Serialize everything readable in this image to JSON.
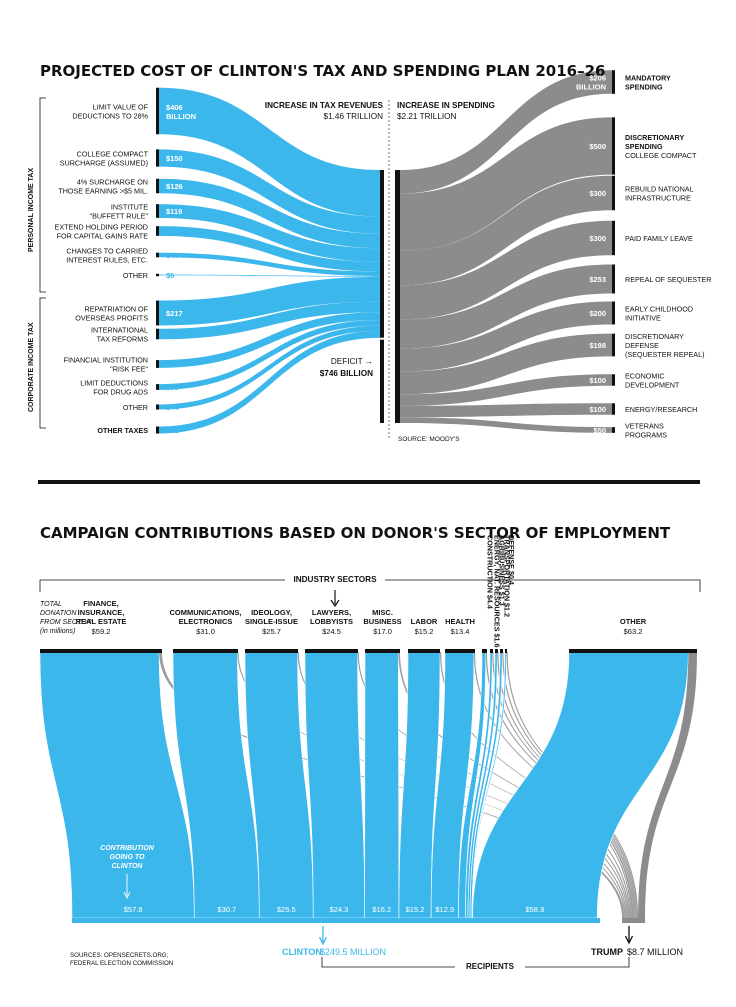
{
  "colors": {
    "blue": "#3cb7ec",
    "gray": "#8c8c8e",
    "dark": "#111111",
    "white": "#ffffff"
  },
  "top": {
    "title": "PROJECTED COST OF CLINTON'S TAX AND SPENDING PLAN 2016–26",
    "header_revenue_title": "INCREASE IN TAX REVENUES",
    "header_revenue_value": "$1.46 TRILLION",
    "header_spending_title": "INCREASE IN SPENDING",
    "header_spending_value": "$2.21 TRILLION",
    "bracket_personal": "PERSONAL INCOME TAX",
    "bracket_corporate": "CORPORATE INCOME TAX",
    "deficit_label": "DEFICIT →",
    "deficit_value": "$746 BILLION",
    "source": "SOURCE: MOODY'S"
  },
  "bottom": {
    "title": "CAMPAIGN CONTRIBUTIONS BASED ON DONOR'S SECTOR OF EMPLOYMENT",
    "industry_label": "INDUSTRY SECTORS",
    "total_note": [
      "TOTAL",
      "DONATION",
      "FROM SECTOR",
      "(in millions)"
    ],
    "clinton_note": [
      "CONTRIBUTION",
      "GOING TO",
      "CLINTON"
    ],
    "clinton_label": "CLINTON",
    "clinton_value": "$249.5 MILLION",
    "trump_label": "TRUMP",
    "trump_value": "$8.7 MILLION",
    "recipients_label": "RECIPIENTS",
    "sources": [
      "SOURCES: OPENSECRETS.ORG;",
      "FEDERAL ELECTION COMMISSION"
    ]
  },
  "chart_data": [
    {
      "type": "sankey",
      "title": "PROJECTED COST OF CLINTON'S TAX AND SPENDING PLAN 2016–26",
      "units": "billions",
      "sources": [
        {
          "group": "PERSONAL INCOME TAX",
          "label": [
            "LIMIT VALUE OF",
            "DEDUCTIONS TO 28%"
          ],
          "value": 406,
          "value_label": [
            "$406",
            "BILLION"
          ]
        },
        {
          "group": "PERSONAL INCOME TAX",
          "label": [
            "COLLEGE COMPACT",
            "SURCHARGE (ASSUMED)"
          ],
          "value": 150,
          "value_label": [
            "$150"
          ]
        },
        {
          "group": "PERSONAL INCOME TAX",
          "label": [
            "4% SURCHARGE ON",
            "THOSE EARNING >$5 MIL."
          ],
          "value": 126,
          "value_label": [
            "$126"
          ]
        },
        {
          "group": "PERSONAL INCOME TAX",
          "label": [
            "INSTITUTE",
            "\"BUFFETT RULE\""
          ],
          "value": 119,
          "value_label": [
            "$119"
          ]
        },
        {
          "group": "PERSONAL INCOME TAX",
          "label": [
            "EXTEND HOLDING PERIOD",
            "FOR CAPITAL GAINS RATE"
          ],
          "value": 84,
          "value_label": [
            "$84"
          ]
        },
        {
          "group": "PERSONAL INCOME TAX",
          "label": [
            "CHANGES TO CARRIED",
            "INTEREST RULES, ETC."
          ],
          "value": 40,
          "value_label": [
            "$40"
          ]
        },
        {
          "group": "PERSONAL INCOME TAX",
          "label": [
            "OTHER"
          ],
          "value": 6,
          "value_label": [
            "$6"
          ]
        },
        {
          "group": "CORPORATE INCOME TAX",
          "label": [
            "REPATRIATION OF",
            "OVERSEAS PROFITS"
          ],
          "value": 217,
          "value_label": [
            "$217"
          ]
        },
        {
          "group": "CORPORATE INCOME TAX",
          "label": [
            "INTERNATIONAL",
            "TAX REFORMS"
          ],
          "value": 92,
          "value_label": [
            "$92"
          ]
        },
        {
          "group": "CORPORATE INCOME TAX",
          "label": [
            "FINANCIAL INSTITUTION",
            "\"RISK FEE\""
          ],
          "value": 68,
          "value_label": [
            "$68"
          ]
        },
        {
          "group": "CORPORATE INCOME TAX",
          "label": [
            "LIMIT DEDUCTIONS",
            "FOR DRUG ADS"
          ],
          "value": 50,
          "value_label": [
            "$50"
          ]
        },
        {
          "group": "CORPORATE INCOME TAX",
          "label": [
            "OTHER"
          ],
          "value": 44,
          "value_label": [
            "$44"
          ]
        },
        {
          "group": "",
          "label": [
            "OTHER TAXES"
          ],
          "value": 61,
          "value_label": [
            "$61"
          ]
        }
      ],
      "totals": {
        "revenue_trillions": 1.46,
        "spending_trillions": 2.21,
        "deficit_billions": 746
      },
      "targets": [
        {
          "label": [
            "MANDATORY",
            "SPENDING"
          ],
          "bold": true,
          "value": 206,
          "value_label": [
            "$206",
            "BILLION"
          ]
        },
        {
          "label": [
            "DISCRETIONARY",
            "SPENDING",
            "COLLEGE COMPACT"
          ],
          "bold_lines": 2,
          "value": 500,
          "value_label": [
            "$500"
          ]
        },
        {
          "label": [
            "REBUILD NATIONAL",
            "INFRASTRUCTURE"
          ],
          "value": 300,
          "value_label": [
            "$300"
          ]
        },
        {
          "label": [
            "PAID FAMILY LEAVE"
          ],
          "value": 300,
          "value_label": [
            "$300"
          ]
        },
        {
          "label": [
            "REPEAL OF SEQUESTER"
          ],
          "value": 253,
          "value_label": [
            "$253"
          ]
        },
        {
          "label": [
            "EARLY CHILDHOOD",
            "INITIATIVE"
          ],
          "value": 200,
          "value_label": [
            "$200"
          ]
        },
        {
          "label": [
            "DISCRETIONARY",
            "DEFENSE",
            "(SEQUESTER REPEAL)"
          ],
          "value": 198,
          "value_label": [
            "$198"
          ]
        },
        {
          "label": [
            "ECONOMIC",
            "DEVELOPMENT"
          ],
          "value": 100,
          "value_label": [
            "$100"
          ]
        },
        {
          "label": [
            "ENERGY/RESEARCH"
          ],
          "value": 100,
          "value_label": [
            "$100"
          ]
        },
        {
          "label": [
            "VETERANS",
            "PROGRAMS"
          ],
          "value": 50,
          "value_label": [
            "$50"
          ]
        }
      ]
    },
    {
      "type": "sankey",
      "title": "CAMPAIGN CONTRIBUTIONS BASED ON DONOR'S SECTOR OF EMPLOYMENT",
      "units": "millions of dollars",
      "recipients": {
        "clinton_total_millions": 249.5,
        "trump_total_millions": 8.7
      },
      "sectors": [
        {
          "name": [
            "FINANCE,",
            "INSURANCE,",
            "REAL ESTATE"
          ],
          "total": 59.2,
          "total_label": "$59.2",
          "clinton": 57.8,
          "clinton_label": "$57.8"
        },
        {
          "name": [
            "COMMUNICATIONS,",
            "ELECTRONICS"
          ],
          "total": 31.0,
          "total_label": "$31.0",
          "clinton": 30.7,
          "clinton_label": "$30.7"
        },
        {
          "name": [
            "IDEOLOGY,",
            "SINGLE-ISSUE"
          ],
          "total": 25.7,
          "total_label": "$25.7",
          "clinton": 25.5,
          "clinton_label": "$25.5"
        },
        {
          "name": [
            "LAWYERS,",
            "LOBBYISTS"
          ],
          "total": 24.5,
          "total_label": "$24.5",
          "clinton": 24.3,
          "clinton_label": "$24.3"
        },
        {
          "name": [
            "MISC.",
            "BUSINESS"
          ],
          "total": 17.0,
          "total_label": "$17.0",
          "clinton": 16.2,
          "clinton_label": "$16.2"
        },
        {
          "name": [
            "LABOR"
          ],
          "total": 15.2,
          "total_label": "$15.2",
          "clinton": 15.2,
          "clinton_label": "$15.2"
        },
        {
          "name": [
            "HEALTH"
          ],
          "total": 13.4,
          "total_label": "$13.4",
          "clinton": 12.9,
          "clinton_label": "$12.9"
        },
        {
          "name": [
            "CONSTRUCTION"
          ],
          "vertical": true,
          "total": 4.4,
          "total_label": "$4.4"
        },
        {
          "name": [
            "ENERGY, NAT. RESOURCES"
          ],
          "vertical": true,
          "total": 1.6,
          "total_label": "$1.6"
        },
        {
          "name": [
            "AGRIBUSINESS"
          ],
          "vertical": true,
          "total": 1.3,
          "total_label": "$1.3"
        },
        {
          "name": [
            "TRANSPORTATION"
          ],
          "vertical": true,
          "total": 1.2,
          "total_label": "$1.2"
        },
        {
          "name": [
            "DEFENSE"
          ],
          "vertical": true,
          "total": 0.4,
          "total_label": "$0.4"
        },
        {
          "name": [
            "OTHER"
          ],
          "total": 63.2,
          "total_label": "$63.2",
          "clinton": 58.9,
          "clinton_label": "$58.9"
        }
      ]
    }
  ]
}
